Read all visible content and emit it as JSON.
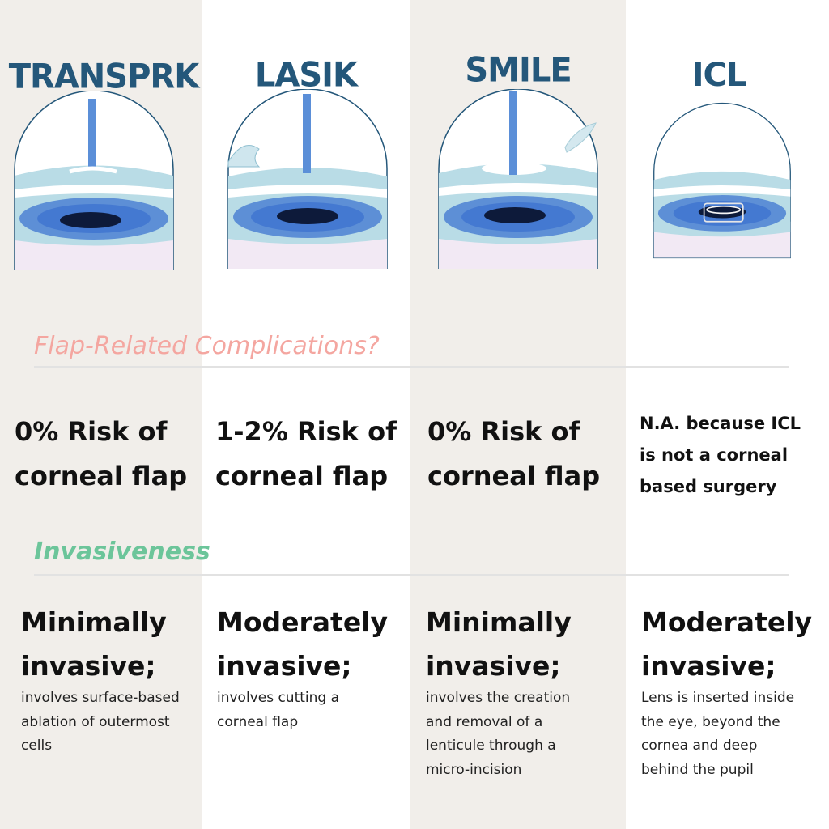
{
  "colors": {
    "beige_band": "#f1eeea",
    "title_blue": "#24577a",
    "flap_label": "#f4a6a0",
    "invasiveness_label": "#6cc59a"
  },
  "sections": {
    "flap_label": "Flap-Related Complications?",
    "invasiveness_label": "Invasiveness"
  },
  "procedures": [
    {
      "title": "TRANSPRK",
      "risk_line1": "0% Risk of",
      "risk_line2": "corneal flap",
      "inv_line1": "Minimally",
      "inv_line2": "invasive;",
      "desc": [
        "involves surface-based",
        "ablation of outermost",
        "cells"
      ]
    },
    {
      "title": "LASIK",
      "risk_line1": "1-2% Risk of",
      "risk_line2": "corneal flap",
      "inv_line1": "Moderately",
      "inv_line2": "invasive;",
      "desc": [
        "involves cutting a",
        "corneal flap"
      ]
    },
    {
      "title": "SMILE",
      "risk_line1": "0% Risk of",
      "risk_line2": "corneal flap",
      "inv_line1": "Minimally",
      "inv_line2": "invasive;",
      "desc": [
        "involves the creation",
        "and removal of a",
        "lenticule through a",
        "micro-incision"
      ]
    },
    {
      "title": "ICL",
      "risk_line1": "N.A. because ICL",
      "risk_line2": "is not a corneal",
      "risk_line3": "based surgery",
      "inv_line1": "Moderately",
      "inv_line2": "invasive;",
      "desc": [
        "Lens is inserted inside",
        "the eye, beyond the",
        "cornea and deep",
        "behind the pupil"
      ]
    }
  ]
}
